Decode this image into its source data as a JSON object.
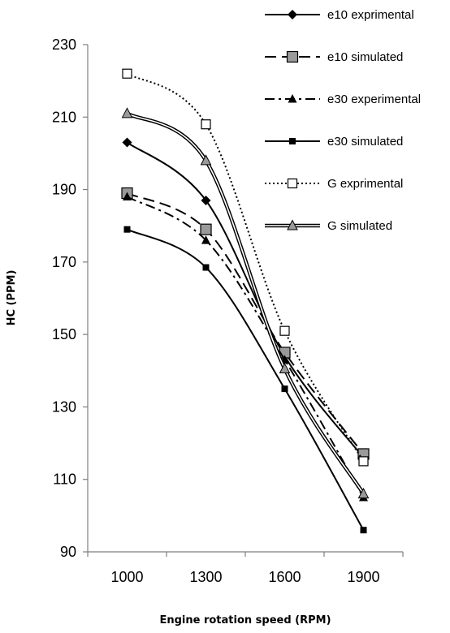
{
  "chart_data": {
    "type": "line",
    "categories": [
      "1000",
      "1300",
      "1600",
      "1900"
    ],
    "xlabel": "Engine rotation speed (RPM)",
    "ylabel": "HC (PPM)",
    "ylim": [
      90,
      230
    ],
    "yticks": [
      "90",
      "110",
      "130",
      "150",
      "170",
      "190",
      "210",
      "230"
    ],
    "grid": false,
    "legend_position": "top-right",
    "series": [
      {
        "name": "e10 exprimental",
        "values": [
          203,
          187,
          144,
          116
        ],
        "color": "#000000",
        "dash": "solid",
        "marker": "diamond-filled",
        "line": "single"
      },
      {
        "name": "e10 simulated",
        "values": [
          189,
          179,
          145,
          117
        ],
        "color": "#000000",
        "dash": "long-dash",
        "marker": "square-gray",
        "line": "single"
      },
      {
        "name": "e30 experimental",
        "values": [
          188,
          176,
          143,
          105
        ],
        "color": "#000000",
        "dash": "dash-dot",
        "marker": "triangle-filled",
        "line": "single"
      },
      {
        "name": "e30 simulated",
        "values": [
          179,
          168.5,
          135,
          96
        ],
        "color": "#000000",
        "dash": "solid",
        "marker": "square-filled",
        "line": "single"
      },
      {
        "name": "G exprimental",
        "values": [
          222,
          208,
          151,
          115
        ],
        "color": "#000000",
        "dash": "dotted",
        "marker": "square-open",
        "line": "single"
      },
      {
        "name": "G simulated",
        "values": [
          211,
          198,
          140.5,
          106
        ],
        "color": "#000000",
        "dash": "solid",
        "marker": "triangle-gray",
        "line": "double"
      }
    ]
  }
}
